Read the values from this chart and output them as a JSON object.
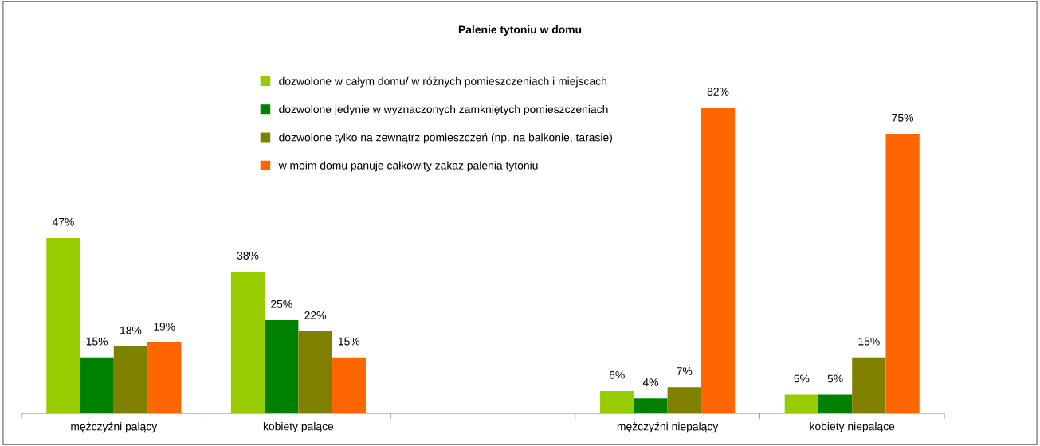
{
  "chart_data": {
    "type": "bar",
    "title": "Palenie tytoniu w domu",
    "categories": [
      "mężczyźni palący",
      "kobiety palące",
      null,
      "mężczyźni niepalący",
      "kobiety niepalące"
    ],
    "series": [
      {
        "name": "dozwolone w całym domu/ w różnych pomieszczeniach i miejscach",
        "color": "#99cc00",
        "values": [
          47,
          38,
          null,
          6,
          5
        ],
        "value_labels": [
          "47%",
          "38%",
          null,
          "6%",
          "5%"
        ]
      },
      {
        "name": "dozwolone jedynie w wyznaczonych zamkniętych pomieszczeniach",
        "color": "#008000",
        "values": [
          15,
          25,
          null,
          4,
          5
        ],
        "value_labels": [
          "15%",
          "25%",
          null,
          "4%",
          "5%"
        ]
      },
      {
        "name": "dozwolone tylko na zewnątrz pomieszczeń (np. na balkonie, tarasie)",
        "color": "#808000",
        "values": [
          18,
          22,
          null,
          7,
          15
        ],
        "value_labels": [
          "18%",
          "22%",
          null,
          "7%",
          "15%"
        ]
      },
      {
        "name": "w moim domu panuje całkowity zakaz palenia tytoniu",
        "color": "#ff6600",
        "values": [
          19,
          15,
          null,
          82,
          75
        ],
        "value_labels": [
          "19%",
          "15%",
          null,
          "82%",
          "75%"
        ]
      }
    ],
    "legend": "top",
    "tick_labels": "x"
  }
}
